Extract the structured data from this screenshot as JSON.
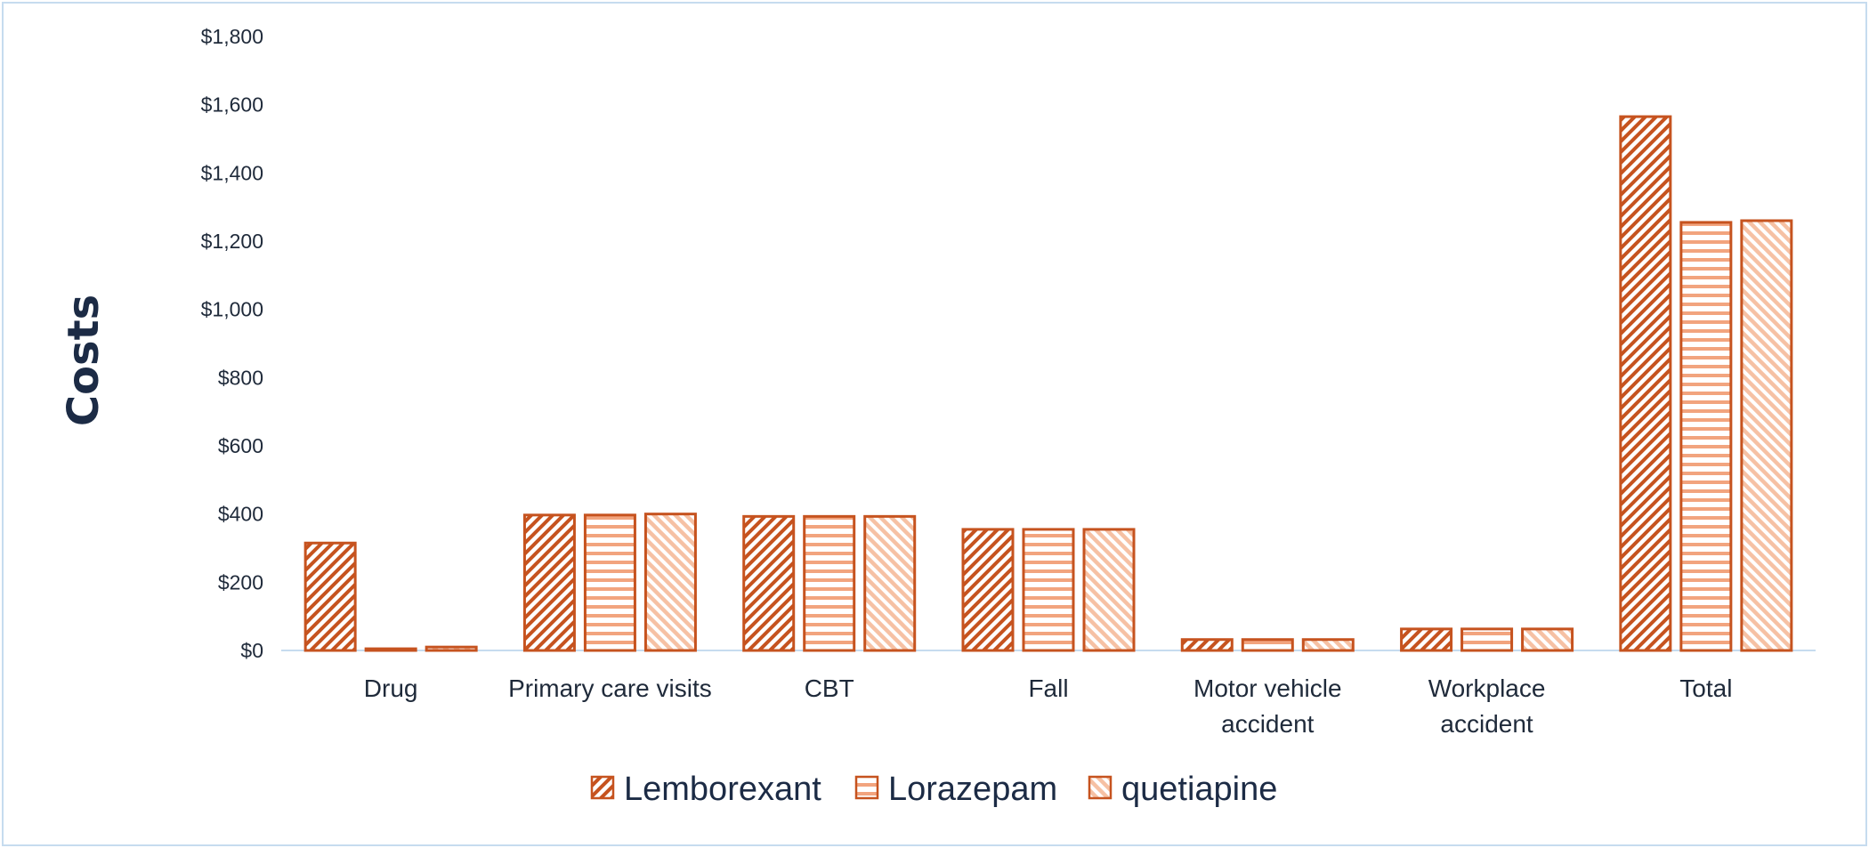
{
  "chart_data": {
    "type": "bar",
    "title": "",
    "xlabel": "",
    "ylabel": "Costs",
    "ylim": [
      0,
      1800
    ],
    "y_ticks": [
      "$0",
      "$200",
      "$400",
      "$600",
      "$800",
      "$1,000",
      "$1,200",
      "$1,400",
      "$1,600",
      "$1,800"
    ],
    "y_tick_values": [
      0,
      200,
      400,
      600,
      800,
      1000,
      1200,
      1400,
      1600,
      1800
    ],
    "categories": [
      [
        "Drug"
      ],
      [
        "Primary care visits"
      ],
      [
        "CBT"
      ],
      [
        "Fall"
      ],
      [
        "Motor vehicle",
        "accident"
      ],
      [
        "Workplace",
        "accident"
      ],
      [
        "Total"
      ]
    ],
    "series": [
      {
        "name": "Lemborexant",
        "pattern": "diag-up",
        "values": [
          315,
          397,
          393,
          355,
          32,
          63,
          1565
        ]
      },
      {
        "name": "Lorazepam",
        "pattern": "horizontal",
        "values": [
          5,
          397,
          393,
          355,
          32,
          63,
          1255
        ]
      },
      {
        "name": "quetiapine",
        "pattern": "diag-down",
        "values": [
          10,
          400,
          393,
          355,
          32,
          63,
          1260
        ]
      }
    ],
    "grid": false,
    "legend_position": "bottom",
    "colors": {
      "edge": "#c6531f",
      "fill_light": "#f6c1a4",
      "axis": "#c6dcef",
      "text": "#1f2a3a"
    }
  }
}
